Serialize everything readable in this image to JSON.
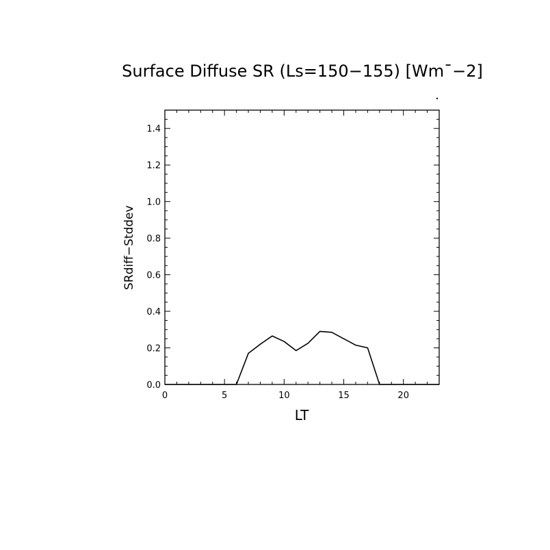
{
  "chart_data": {
    "type": "line",
    "title": "Surface Diffuse SR (Ls=150−155) [Wm¯−2]",
    "xlabel": "LT",
    "ylabel": "SRdiff−Stddev",
    "xlim": [
      0,
      23
    ],
    "ylim": [
      0.0,
      1.5
    ],
    "x_ticks": [
      0,
      5,
      10,
      15,
      20
    ],
    "x_tick_labels": [
      "0",
      "5",
      "10",
      "15",
      "20"
    ],
    "y_ticks": [
      0.0,
      0.2,
      0.4,
      0.6,
      0.8,
      1.0,
      1.2,
      1.4
    ],
    "y_tick_labels": [
      "0.0",
      "0.2",
      "0.4",
      "0.6",
      "0.8",
      "1.0",
      "1.2",
      "1.4"
    ],
    "grid": false,
    "series": [
      {
        "x": [
          0,
          1,
          2,
          3,
          4,
          5,
          6,
          7,
          8,
          9,
          10,
          11,
          12,
          13,
          14,
          15,
          16,
          17,
          18,
          19,
          20,
          21,
          22,
          23
        ],
        "values": [
          0,
          0,
          0,
          0,
          0,
          0,
          0,
          0.17,
          0.22,
          0.265,
          0.235,
          0.185,
          0.225,
          0.29,
          0.285,
          0.25,
          0.215,
          0.2,
          0,
          0,
          0,
          0,
          0,
          0
        ]
      }
    ],
    "line_color": "#000000"
  }
}
